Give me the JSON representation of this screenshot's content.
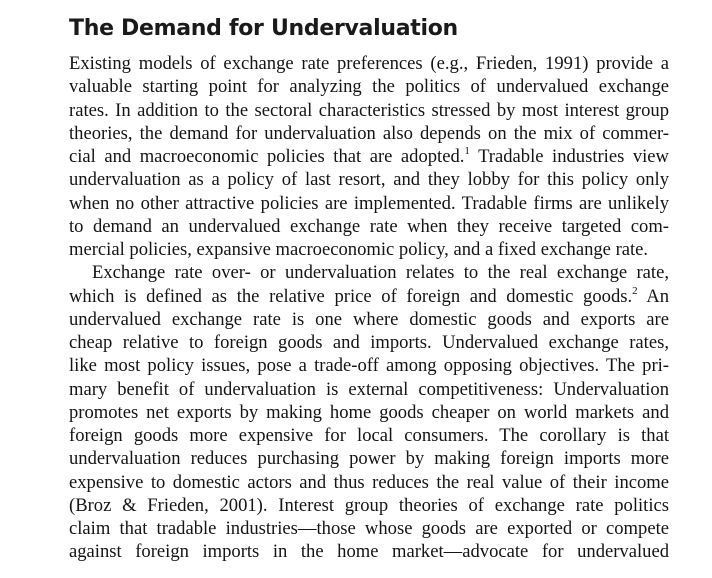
{
  "heading": "The Demand for Undervaluation",
  "paragraphs": [
    {
      "lines": [
        {
          "text": "Existing models of exchange rate preferences (e.g., Frieden, 1991) provide a"
        },
        {
          "text": "valuable starting point for analyzing the politics of undervalued exchange"
        },
        {
          "text": "rates. In addition to the sectoral characteristics stressed by most interest group"
        },
        {
          "text": "theories, the demand for undervaluation also depends on the mix of commer-"
        },
        {
          "text": "cial and macroeconomic policies that are adopted.",
          "footnote": "1",
          "after": " Tradable industries view"
        },
        {
          "text": "undervaluation as a policy of last resort, and they lobby for this policy only"
        },
        {
          "text": "when no other attractive policies are implemented. Tradable firms are unlikely"
        },
        {
          "text": "to demand an undervalued exchange rate when they receive targeted com-"
        },
        {
          "text": "mercial policies, expansive macroeconomic policy, and a fixed exchange rate."
        }
      ]
    },
    {
      "lines": [
        {
          "text": "Exchange rate over- or undervaluation relates to the real exchange rate,"
        },
        {
          "text": "which is defined as the relative price of foreign and domestic goods.",
          "footnote": "2",
          "after": " An"
        },
        {
          "text": "undervalued exchange rate is one where domestic goods and exports are"
        },
        {
          "text": "cheap relative to foreign goods and imports. Undervalued exchange rates,"
        },
        {
          "text": "like most policy issues, pose a trade-off among opposing objectives. The pri-"
        },
        {
          "text": "mary benefit of undervaluation is external competitiveness: Undervaluation"
        },
        {
          "text": "promotes net exports by making home goods cheaper on world markets and"
        },
        {
          "text": "foreign goods more expensive for local consumers. The corollary is that"
        },
        {
          "text": "undervaluation reduces purchasing power by making foreign imports more"
        },
        {
          "text": "expensive to domestic actors and thus reduces the real value of their income"
        },
        {
          "text": "(Broz & Frieden, 2001). Interest group theories of exchange rate politics"
        },
        {
          "text": "claim that tradable industries—those whose goods are exported or compete"
        },
        {
          "text": "against foreign imports in the home market—advocate for undervalued"
        }
      ]
    }
  ]
}
